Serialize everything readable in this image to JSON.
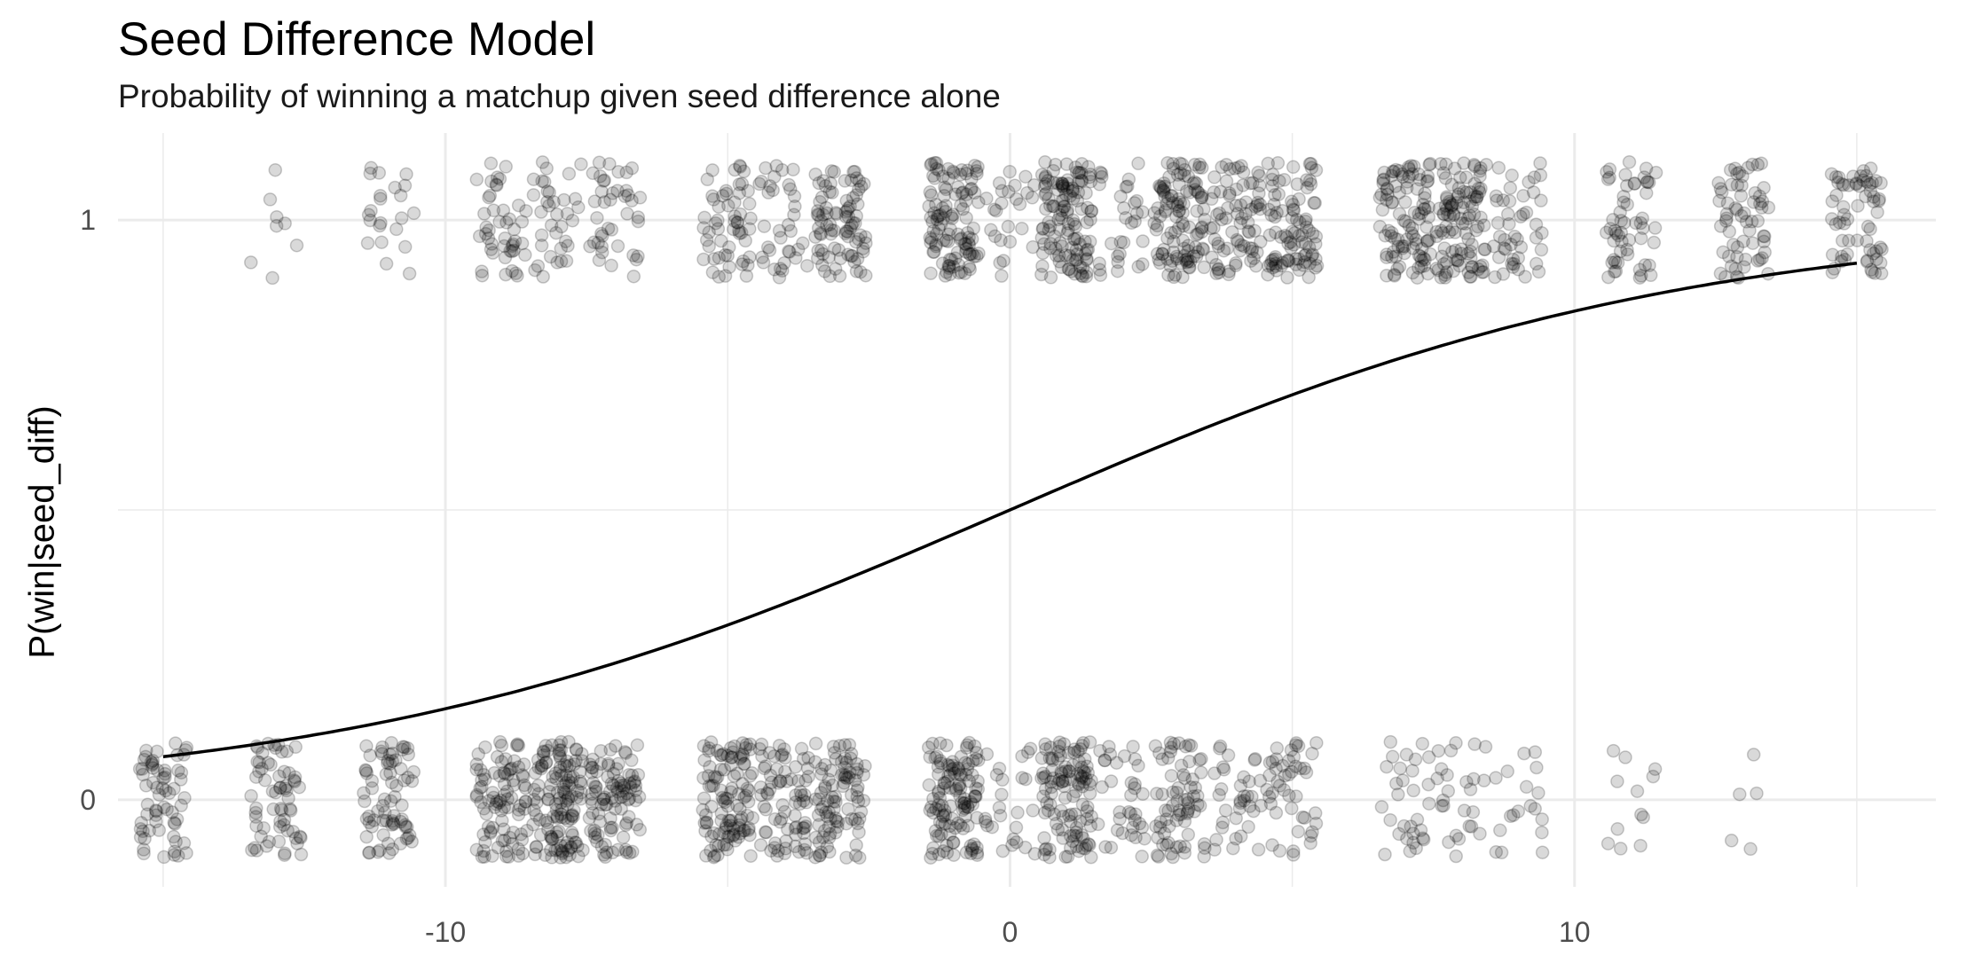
{
  "chart_data": {
    "type": "scatter",
    "title": "Seed Difference Model",
    "subtitle": "Probability of winning a matchup given seed difference alone",
    "xlabel": "",
    "ylabel": "P(win|seed_diff)",
    "xlim": [
      -15.8,
      16.4
    ],
    "ylim": [
      -0.15,
      1.15
    ],
    "x_ticks": [
      -10,
      0,
      10
    ],
    "x_tick_labels": [
      "-10",
      "0",
      "10"
    ],
    "y_ticks": [
      0,
      1
    ],
    "y_tick_labels": [
      "0",
      "1"
    ],
    "grid": true,
    "jitter": {
      "x_width": 0.45,
      "y_height": 0.1
    },
    "point_alpha": 0.15,
    "points_color": "#000000",
    "curve_color": "#000000",
    "grid_color": "#ebebeb",
    "groups": [
      {
        "seed_diff": -15,
        "wins": 0,
        "losses": 64
      },
      {
        "seed_diff": -13,
        "wins": 8,
        "losses": 64
      },
      {
        "seed_diff": -11,
        "wins": 22,
        "losses": 72
      },
      {
        "seed_diff": -9,
        "wins": 45,
        "losses": 90
      },
      {
        "seed_diff": -8,
        "wins": 35,
        "losses": 130
      },
      {
        "seed_diff": -7,
        "wins": 40,
        "losses": 95
      },
      {
        "seed_diff": -5,
        "wins": 55,
        "losses": 110
      },
      {
        "seed_diff": -4,
        "wins": 35,
        "losses": 75
      },
      {
        "seed_diff": -3,
        "wins": 85,
        "losses": 90
      },
      {
        "seed_diff": -1,
        "wins": 110,
        "losses": 120
      },
      {
        "seed_diff": 0,
        "wins": 25,
        "losses": 25
      },
      {
        "seed_diff": 1,
        "wins": 125,
        "losses": 115
      },
      {
        "seed_diff": 2,
        "wins": 30,
        "losses": 35
      },
      {
        "seed_diff": 3,
        "wins": 110,
        "losses": 70
      },
      {
        "seed_diff": 4,
        "wins": 75,
        "losses": 35
      },
      {
        "seed_diff": 5,
        "wins": 90,
        "losses": 45
      },
      {
        "seed_diff": 7,
        "wins": 100,
        "losses": 30
      },
      {
        "seed_diff": 8,
        "wins": 105,
        "losses": 25
      },
      {
        "seed_diff": 9,
        "wins": 45,
        "losses": 18
      },
      {
        "seed_diff": 11,
        "wins": 55,
        "losses": 12
      },
      {
        "seed_diff": 13,
        "wins": 62,
        "losses": 5
      },
      {
        "seed_diff": 15,
        "wins": 64,
        "losses": 0
      }
    ],
    "fit_curve": {
      "type": "logistic",
      "intercept": 0,
      "slope": 0.168,
      "x_range": [
        -15,
        15
      ]
    }
  }
}
